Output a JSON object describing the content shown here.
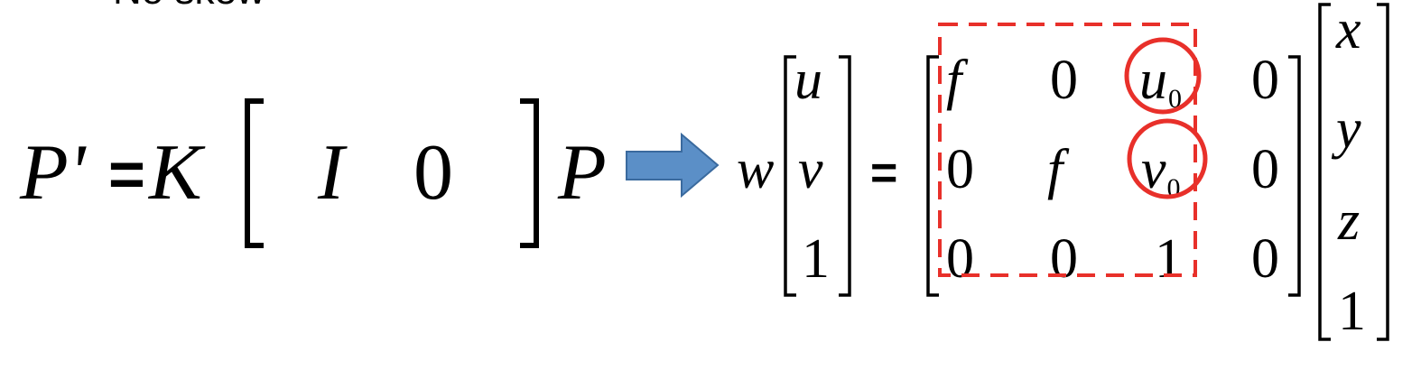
{
  "heading": "No skew",
  "lhs": {
    "p_prime": "P'",
    "eq": "=",
    "k": "K",
    "i": "I",
    "zero": "0",
    "p": "P"
  },
  "rhs": {
    "w": "w",
    "eq": "=",
    "uv1": [
      "u",
      "v",
      "1"
    ],
    "intrinsic": [
      [
        "f",
        "0",
        "u",
        "0"
      ],
      [
        "0",
        "f",
        "v",
        "0"
      ],
      [
        "0",
        "0",
        "1",
        "0"
      ]
    ],
    "u0_sub": "0",
    "v0_sub": "0",
    "xyz1": [
      "x",
      "y",
      "z",
      "1"
    ]
  },
  "colors": {
    "arrow_fill": "#5b8fc7",
    "arrow_stroke": "#3a6a9e",
    "highlight": "#e8302a"
  },
  "icons": [
    "right-arrow-icon"
  ]
}
